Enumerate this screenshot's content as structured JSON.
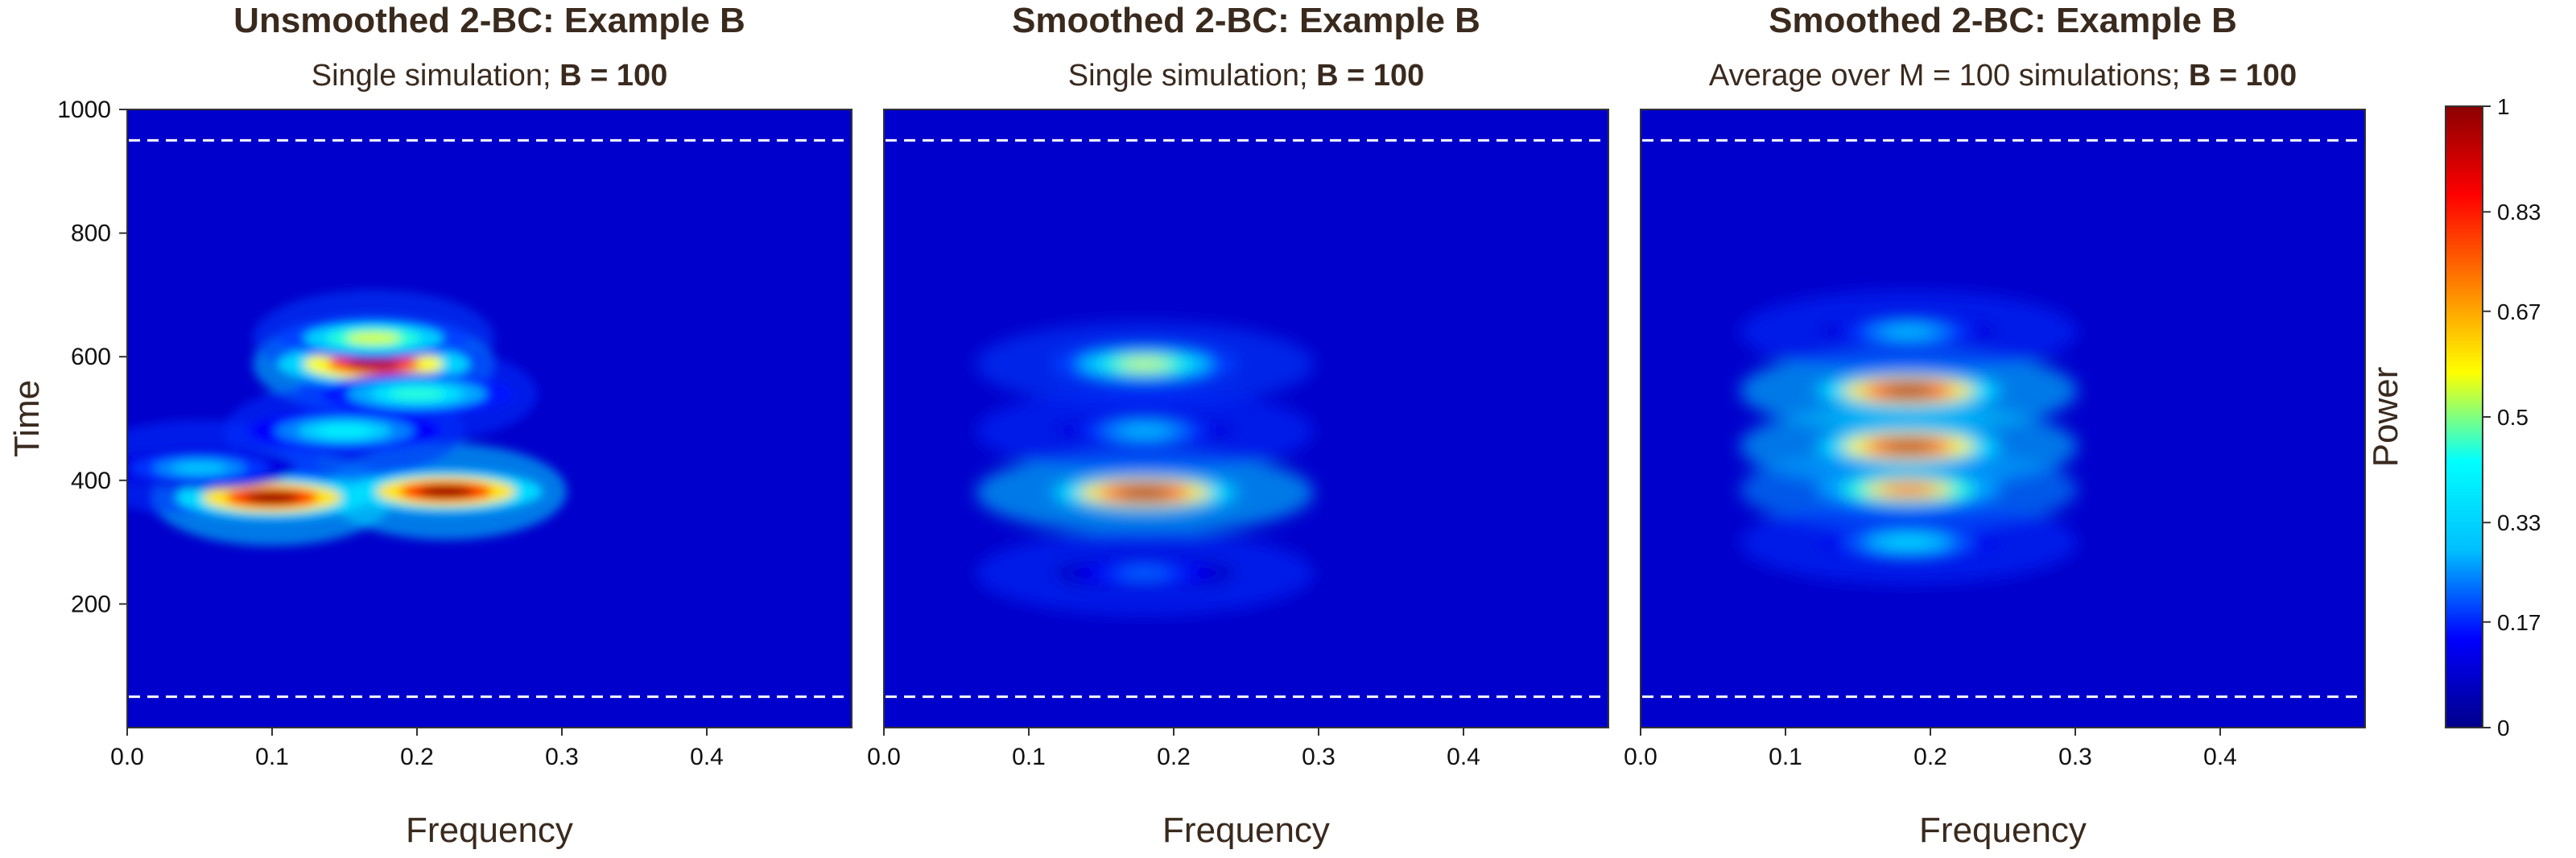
{
  "chart_data": [
    {
      "type": "heatmap",
      "title": "Unsmoothed 2-BC: Example B",
      "subtitle_plain": "Single simulation;",
      "subtitle_bold": "B = 100",
      "xlabel": "Frequency",
      "ylabel": "Time",
      "xlim": [
        0,
        0.5
      ],
      "ylim": [
        0,
        1000
      ],
      "xticks": [
        "0.0",
        "0.1",
        "0.2",
        "0.3",
        "0.4"
      ],
      "yticks": [
        "200",
        "400",
        "600",
        "800",
        "1000"
      ],
      "reference_lines_time": [
        50,
        950
      ],
      "hotspots": [
        {
          "freq": 0.1,
          "time": 372,
          "power": 1.0
        },
        {
          "freq": 0.22,
          "time": 382,
          "power": 1.0
        },
        {
          "freq": 0.17,
          "time": 588,
          "power": 0.95
        },
        {
          "freq": 0.17,
          "time": 630,
          "power": 0.55
        },
        {
          "freq": 0.2,
          "time": 540,
          "power": 0.45
        },
        {
          "freq": 0.15,
          "time": 480,
          "power": 0.4
        },
        {
          "freq": 0.05,
          "time": 420,
          "power": 0.3
        }
      ]
    },
    {
      "type": "heatmap",
      "title": "Smoothed 2-BC: Example B",
      "subtitle_plain": "Single simulation;",
      "subtitle_bold": "B = 100",
      "xlabel": "Frequency",
      "xlim": [
        0,
        0.5
      ],
      "ylim": [
        0,
        1000
      ],
      "xticks": [
        "0.0",
        "0.1",
        "0.2",
        "0.3",
        "0.4"
      ],
      "reference_lines_time": [
        50,
        950
      ],
      "hotspots": [
        {
          "freq": 0.18,
          "time": 380,
          "power": 1.0
        },
        {
          "freq": 0.18,
          "time": 588,
          "power": 0.55
        },
        {
          "freq": 0.18,
          "time": 480,
          "power": 0.3
        },
        {
          "freq": 0.18,
          "time": 250,
          "power": 0.22
        }
      ]
    },
    {
      "type": "heatmap",
      "title": "Smoothed 2-BC: Example B",
      "subtitle_plain": "Average over M = 100 simulations;",
      "subtitle_bold": "B = 100",
      "xlabel": "Frequency",
      "xlim": [
        0,
        0.5
      ],
      "ylim": [
        0,
        1000
      ],
      "xticks": [
        "0.0",
        "0.1",
        "0.2",
        "0.3",
        "0.4"
      ],
      "reference_lines_time": [
        50,
        950
      ],
      "hotspots": [
        {
          "freq": 0.185,
          "time": 545,
          "power": 1.0
        },
        {
          "freq": 0.185,
          "time": 455,
          "power": 0.97
        },
        {
          "freq": 0.185,
          "time": 385,
          "power": 0.75
        },
        {
          "freq": 0.185,
          "time": 300,
          "power": 0.35
        },
        {
          "freq": 0.185,
          "time": 640,
          "power": 0.3
        }
      ]
    }
  ],
  "colorbar": {
    "label": "Power",
    "ticks": [
      "0",
      "0.17",
      "0.33",
      "0.5",
      "0.67",
      "0.83",
      "1"
    ],
    "range": [
      0,
      1
    ],
    "colors": [
      "#00008b",
      "#0000ff",
      "#00bfff",
      "#00ffff",
      "#ffff00",
      "#ff7f00",
      "#ff0000",
      "#8b0000"
    ]
  }
}
